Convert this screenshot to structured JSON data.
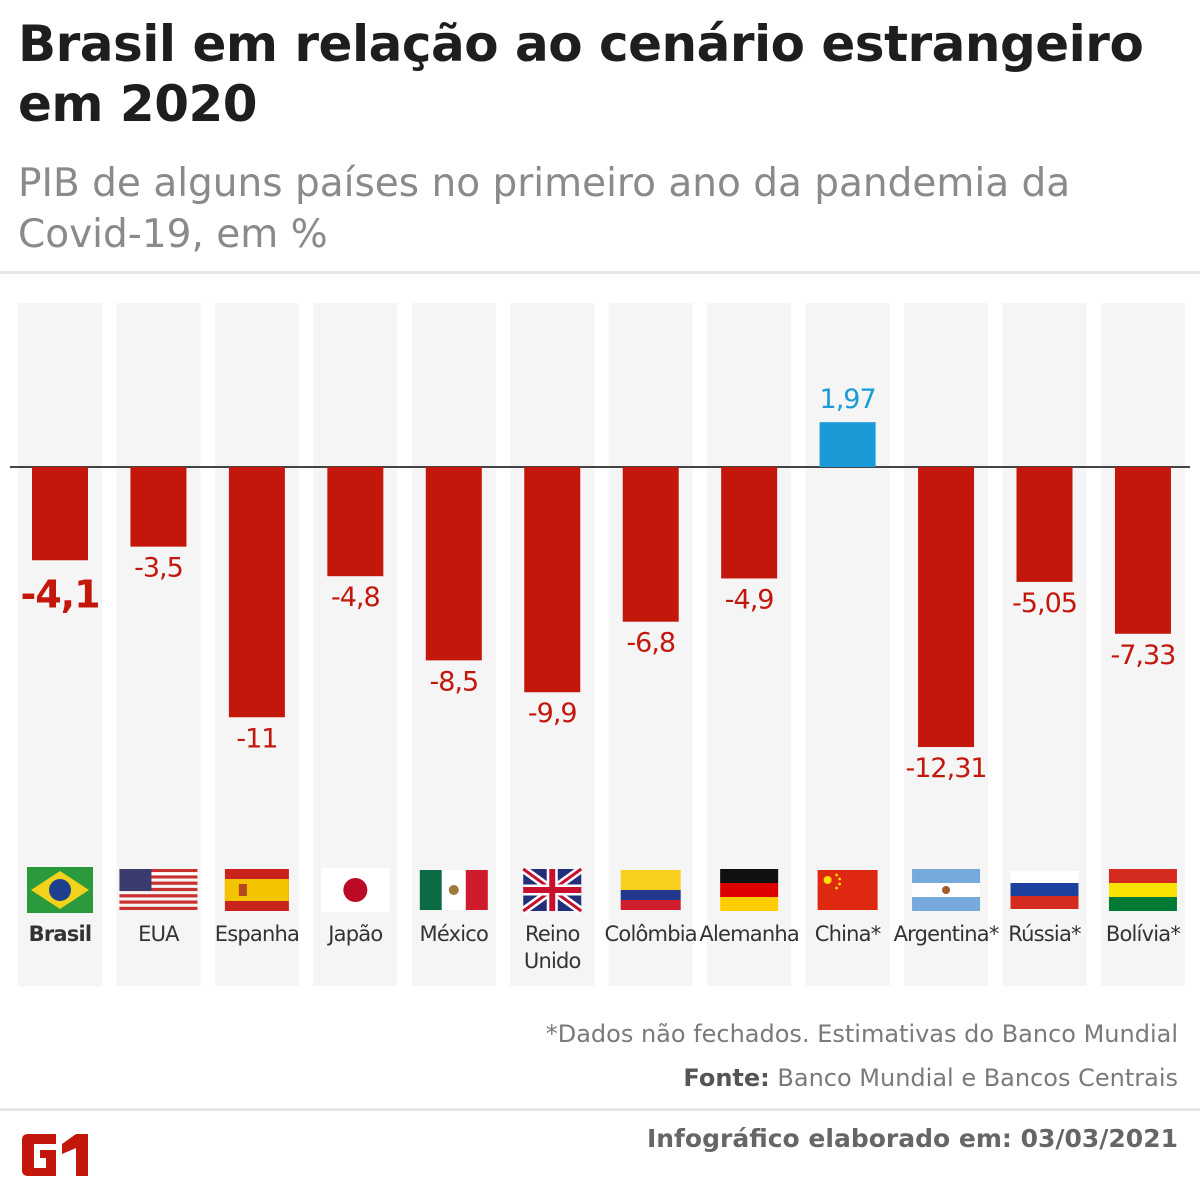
{
  "header": {
    "title": "Brasil em relação ao cenário estrangeiro em 2020",
    "subtitle": "PIB de alguns países no primeiro ano da pandemia da Covid-19, em %"
  },
  "chart_data": {
    "type": "bar",
    "title": "Brasil em relação ao cenário estrangeiro em 2020",
    "subtitle": "PIB de alguns países no primeiro ano da pandemia da Covid-19, em %",
    "categories": [
      "Brasil",
      "EUA",
      "Espanha",
      "Japão",
      "México",
      "Reino Unido",
      "Colômbia",
      "Alemanha",
      "China*",
      "Argentina*",
      "Rússia*",
      "Bolívia*"
    ],
    "values": [
      -4.1,
      -3.5,
      -11,
      -4.8,
      -8.5,
      -9.9,
      -6.8,
      -4.9,
      1.97,
      -12.31,
      -5.05,
      -7.33
    ],
    "value_labels": [
      "-4,1",
      "-3,5",
      "-11",
      "-4,8",
      "-8,5",
      "-9,9",
      "-6,8",
      "-4,9",
      "1,97",
      "-12,31",
      "-5,05",
      "-7,33"
    ],
    "highlight": "Brasil",
    "flags": [
      "brazil-flag",
      "usa-flag",
      "spain-flag",
      "japan-flag",
      "mexico-flag",
      "uk-flag",
      "colombia-flag",
      "germany-flag",
      "china-flag",
      "argentina-flag",
      "russia-flag",
      "bolivia-flag"
    ],
    "colors": {
      "negative": "#c4170c",
      "positive": "#1a9bd7",
      "column_bg": "#f5f5f5",
      "baseline": "#444444"
    },
    "grid": false
  },
  "footer": {
    "note": "*Dados não fechados. Estimativas do Banco Mundial",
    "source_label": "Fonte:",
    "source": "Banco Mundial e Bancos Centrais",
    "credit": "Infográfico elaborado em: 03/03/2021",
    "logo": "G1"
  }
}
